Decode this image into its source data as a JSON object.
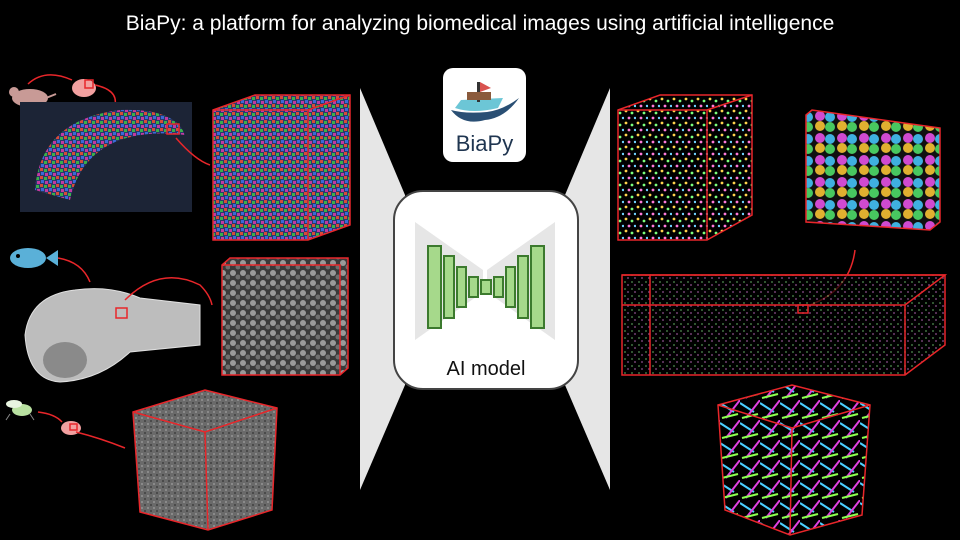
{
  "title": "BiaPy: a platform for analyzing biomedical images using artificial intelligence",
  "logo": {
    "text": "BiaPy"
  },
  "model": {
    "label": "AI model"
  },
  "icons": [
    "mouse-icon",
    "brain-icon",
    "fish-icon",
    "fly-icon"
  ],
  "colors": {
    "background": "#000000",
    "outline": "#e8262a",
    "model": "#a6d98b",
    "model_stroke": "#3c7a2e",
    "funnel": "#e6e6e6"
  }
}
